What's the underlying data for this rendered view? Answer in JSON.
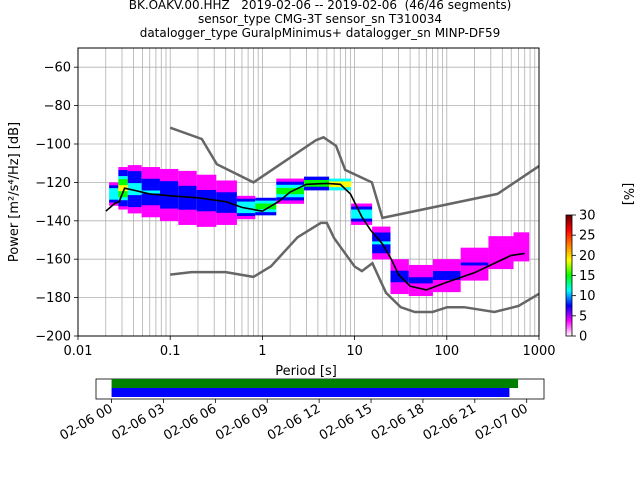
{
  "title": {
    "line1": "BK.OAKV.00.HHZ   2019-02-06 -- 2019-02-06  (46/46 segments)",
    "line2": "sensor_type CMG-3T sensor_sn T310034",
    "line3": "datalogger_type GuralpMinimus+ datalogger_sn MINP-DF59"
  },
  "colorbar": {
    "label": "[%]",
    "ticks": [
      0,
      5,
      10,
      15,
      20,
      25,
      30
    ],
    "range": [
      0,
      30
    ],
    "colors": [
      "#ffffff",
      "#ff00ff",
      "#0000ff",
      "#00ffff",
      "#00ff00",
      "#ffff00",
      "#ff8000",
      "#ff0000",
      "#600000"
    ]
  },
  "chart_data": [
    {
      "type": "line",
      "xlabel": "Period [s]",
      "ylabel": "Power [m²/s⁴/Hz] [dB]",
      "xscale": "log",
      "xlim": [
        0.01,
        1000
      ],
      "ylim": [
        -200,
        -50
      ],
      "xticks": [
        {
          "value": 0.01,
          "label": "0.01"
        },
        {
          "value": 0.1,
          "label": "0.1"
        },
        {
          "value": 1,
          "label": "1"
        },
        {
          "value": 10,
          "label": "10"
        },
        {
          "value": 100,
          "label": "100"
        },
        {
          "value": 1000,
          "label": "1000"
        }
      ],
      "yticks": [
        -60,
        -80,
        -100,
        -120,
        -140,
        -160,
        -180,
        -200
      ],
      "grid": true,
      "series": [
        {
          "role": "new-high-noise-model",
          "color": "#666666",
          "points": [
            [
              0.1,
              -91.5
            ],
            [
              0.22,
              -97.4
            ],
            [
              0.32,
              -110.5
            ],
            [
              0.8,
              -120
            ],
            [
              3.8,
              -98
            ],
            [
              4.6,
              -96.5
            ],
            [
              6.3,
              -101
            ],
            [
              7.9,
              -113.5
            ],
            [
              15.4,
              -120
            ],
            [
              20,
              -138.5
            ],
            [
              354.8,
              -126
            ],
            [
              1000,
              -111.5
            ]
          ]
        },
        {
          "role": "new-low-noise-model",
          "color": "#666666",
          "points": [
            [
              0.1,
              -168
            ],
            [
              0.17,
              -166.7
            ],
            [
              0.4,
              -166.7
            ],
            [
              0.8,
              -169.2
            ],
            [
              1.24,
              -163.7
            ],
            [
              2.4,
              -148.6
            ],
            [
              4.3,
              -141.1
            ],
            [
              5,
              -141.1
            ],
            [
              6,
              -149
            ],
            [
              10,
              -163.8
            ],
            [
              12,
              -166.2
            ],
            [
              15.6,
              -162.1
            ],
            [
              21.9,
              -177.5
            ],
            [
              31.6,
              -185
            ],
            [
              45,
              -187.5
            ],
            [
              70,
              -187.5
            ],
            [
              101,
              -185
            ],
            [
              154,
              -185
            ],
            [
              328,
              -187.5
            ],
            [
              600,
              -184.4
            ],
            [
              1000,
              -178
            ]
          ]
        },
        {
          "role": "mode",
          "color": "#000000",
          "points": [
            [
              0.02,
              -135
            ],
            [
              0.025,
              -131
            ],
            [
              0.028,
              -130
            ],
            [
              0.032,
              -123
            ],
            [
              0.04,
              -124
            ],
            [
              0.06,
              -126
            ],
            [
              0.1,
              -127
            ],
            [
              0.2,
              -128
            ],
            [
              0.4,
              -130
            ],
            [
              0.6,
              -133
            ],
            [
              1,
              -135
            ],
            [
              1.5,
              -130
            ],
            [
              2,
              -125
            ],
            [
              3,
              -121
            ],
            [
              5,
              -120.5
            ],
            [
              7,
              -121
            ],
            [
              9,
              -126
            ],
            [
              12,
              -138
            ],
            [
              15,
              -145
            ],
            [
              20,
              -152
            ],
            [
              25,
              -160
            ],
            [
              30,
              -168
            ],
            [
              40,
              -174
            ],
            [
              60,
              -176
            ],
            [
              100,
              -172
            ],
            [
              200,
              -167
            ],
            [
              300,
              -163
            ],
            [
              500,
              -158
            ],
            [
              700,
              -157
            ]
          ]
        }
      ],
      "heatmap": [
        {
          "x": 0.025,
          "ylo": -132,
          "yhi": -120,
          "level": 14
        },
        {
          "x": 0.03,
          "ylo": -134,
          "yhi": -112,
          "level": 18
        },
        {
          "x": 0.04,
          "ylo": -136,
          "yhi": -111,
          "level": 12
        },
        {
          "x": 0.06,
          "ylo": -138,
          "yhi": -112,
          "level": 10
        },
        {
          "x": 0.1,
          "ylo": -140,
          "yhi": -113,
          "level": 9
        },
        {
          "x": 0.15,
          "ylo": -142,
          "yhi": -114,
          "level": 8
        },
        {
          "x": 0.25,
          "ylo": -143,
          "yhi": -116,
          "level": 8
        },
        {
          "x": 0.4,
          "ylo": -142,
          "yhi": -119,
          "level": 9
        },
        {
          "x": 0.7,
          "ylo": -139,
          "yhi": -127,
          "level": 14
        },
        {
          "x": 1,
          "ylo": -137,
          "yhi": -128,
          "level": 18
        },
        {
          "x": 2,
          "ylo": -131,
          "yhi": -118,
          "level": 16
        },
        {
          "x": 4,
          "ylo": -124,
          "yhi": -117,
          "level": 20
        },
        {
          "x": 7,
          "ylo": -124,
          "yhi": -118,
          "level": 22
        },
        {
          "x": 12,
          "ylo": -142,
          "yhi": -131,
          "level": 12
        },
        {
          "x": 20,
          "ylo": -160,
          "yhi": -143,
          "level": 10
        },
        {
          "x": 30,
          "ylo": -178,
          "yhi": -160,
          "level": 8
        },
        {
          "x": 50,
          "ylo": -179,
          "yhi": -163,
          "level": 7
        },
        {
          "x": 100,
          "ylo": -177,
          "yhi": -160,
          "level": 7
        },
        {
          "x": 200,
          "ylo": -171,
          "yhi": -154,
          "level": 6
        },
        {
          "x": 400,
          "ylo": -165,
          "yhi": -148,
          "level": 5
        },
        {
          "x": 700,
          "ylo": -161,
          "yhi": -146,
          "level": 5
        }
      ]
    },
    {
      "type": "timeline",
      "xticks": [
        "02-06 00",
        "02-06 03",
        "02-06 06",
        "02-06 09",
        "02-06 12",
        "02-06 15",
        "02-06 18",
        "02-06 21",
        "02-07 00"
      ],
      "xlim_hours": [
        -0.9,
        25.0
      ],
      "bars": [
        {
          "color": "#008000",
          "start_hour": 0,
          "end_hour": 23.5
        },
        {
          "color": "#0000ff",
          "start_hour": 0,
          "end_hour": 23.0
        }
      ]
    }
  ]
}
